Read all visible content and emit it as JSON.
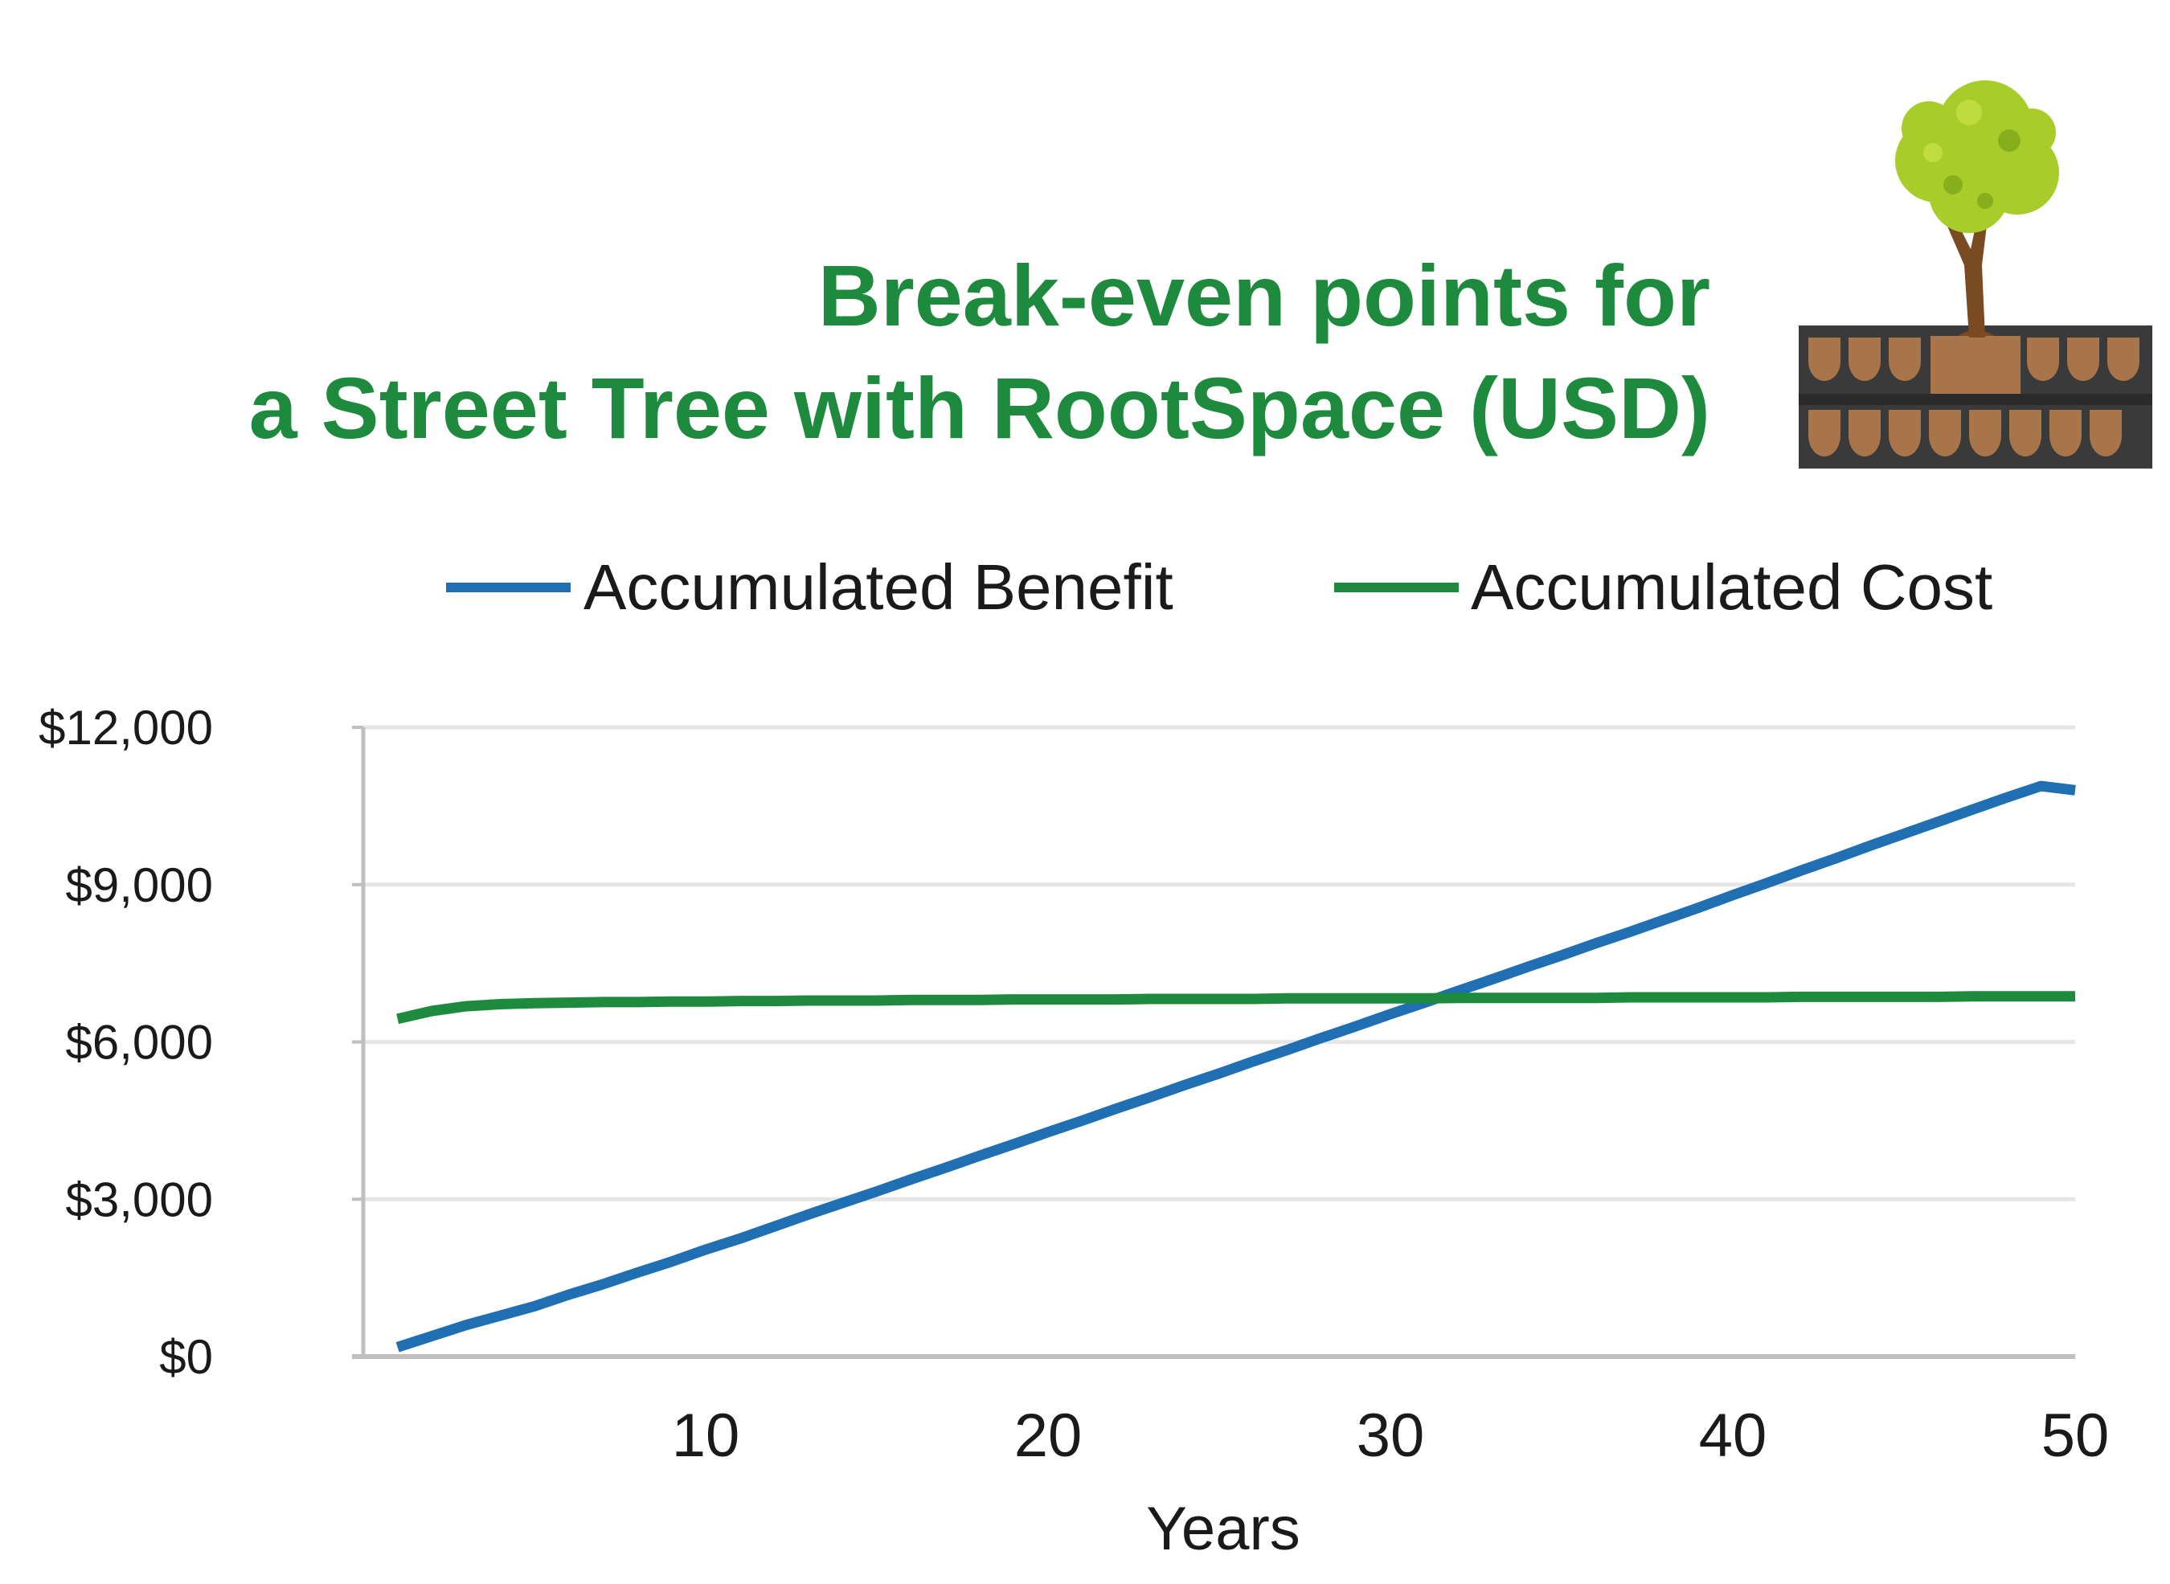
{
  "chart_data": {
    "type": "line",
    "title_lines": [
      "Break-even points for",
      "a Street Tree with RootSpace (USD)"
    ],
    "xlabel": "Years",
    "ylabel": "",
    "xlim": [
      1,
      50
    ],
    "ylim": [
      0,
      12000
    ],
    "x_ticks": [
      10,
      20,
      30,
      40,
      50
    ],
    "y_ticks": [
      0,
      3000,
      6000,
      9000,
      12000
    ],
    "y_tick_labels": [
      "$0",
      "$3,000",
      "$6,000",
      "$9,000",
      "$12,000"
    ],
    "grid": true,
    "legend_position": "top",
    "x": [
      1,
      2,
      3,
      4,
      5,
      6,
      7,
      8,
      9,
      10,
      11,
      12,
      13,
      14,
      15,
      16,
      17,
      18,
      19,
      20,
      21,
      22,
      23,
      24,
      25,
      26,
      27,
      28,
      29,
      30,
      31,
      32,
      33,
      34,
      35,
      36,
      37,
      38,
      39,
      40,
      41,
      42,
      43,
      44,
      45,
      46,
      47,
      48,
      49,
      50
    ],
    "series": [
      {
        "name": "Accumulated Benefit",
        "color": "#1f6fb2",
        "values": [
          180,
          390,
          600,
          780,
          960,
          1180,
          1380,
          1600,
          1810,
          2040,
          2250,
          2480,
          2710,
          2930,
          3150,
          3380,
          3600,
          3830,
          4050,
          4280,
          4500,
          4730,
          4950,
          5180,
          5400,
          5630,
          5850,
          6080,
          6300,
          6530,
          6750,
          6980,
          7200,
          7430,
          7650,
          7880,
          8100,
          8330,
          8560,
          8800,
          9030,
          9270,
          9500,
          9740,
          9970,
          10200,
          10430,
          10660,
          10880,
          10800
        ]
      },
      {
        "name": "Accumulated Cost",
        "color": "#1e8a3e",
        "values": [
          6440,
          6590,
          6680,
          6720,
          6740,
          6750,
          6760,
          6760,
          6770,
          6770,
          6780,
          6780,
          6790,
          6790,
          6790,
          6800,
          6800,
          6800,
          6810,
          6810,
          6810,
          6810,
          6820,
          6820,
          6820,
          6820,
          6830,
          6830,
          6830,
          6830,
          6830,
          6840,
          6840,
          6840,
          6840,
          6840,
          6850,
          6850,
          6850,
          6850,
          6850,
          6860,
          6860,
          6860,
          6860,
          6860,
          6870,
          6870,
          6870,
          6870
        ]
      }
    ]
  },
  "colors": {
    "title": "#1e8a3e",
    "grid": "#e6e6e6",
    "axis": "#bfbfbf"
  },
  "illustration": {
    "icon": "tree-with-rootspace-cells-icon"
  }
}
